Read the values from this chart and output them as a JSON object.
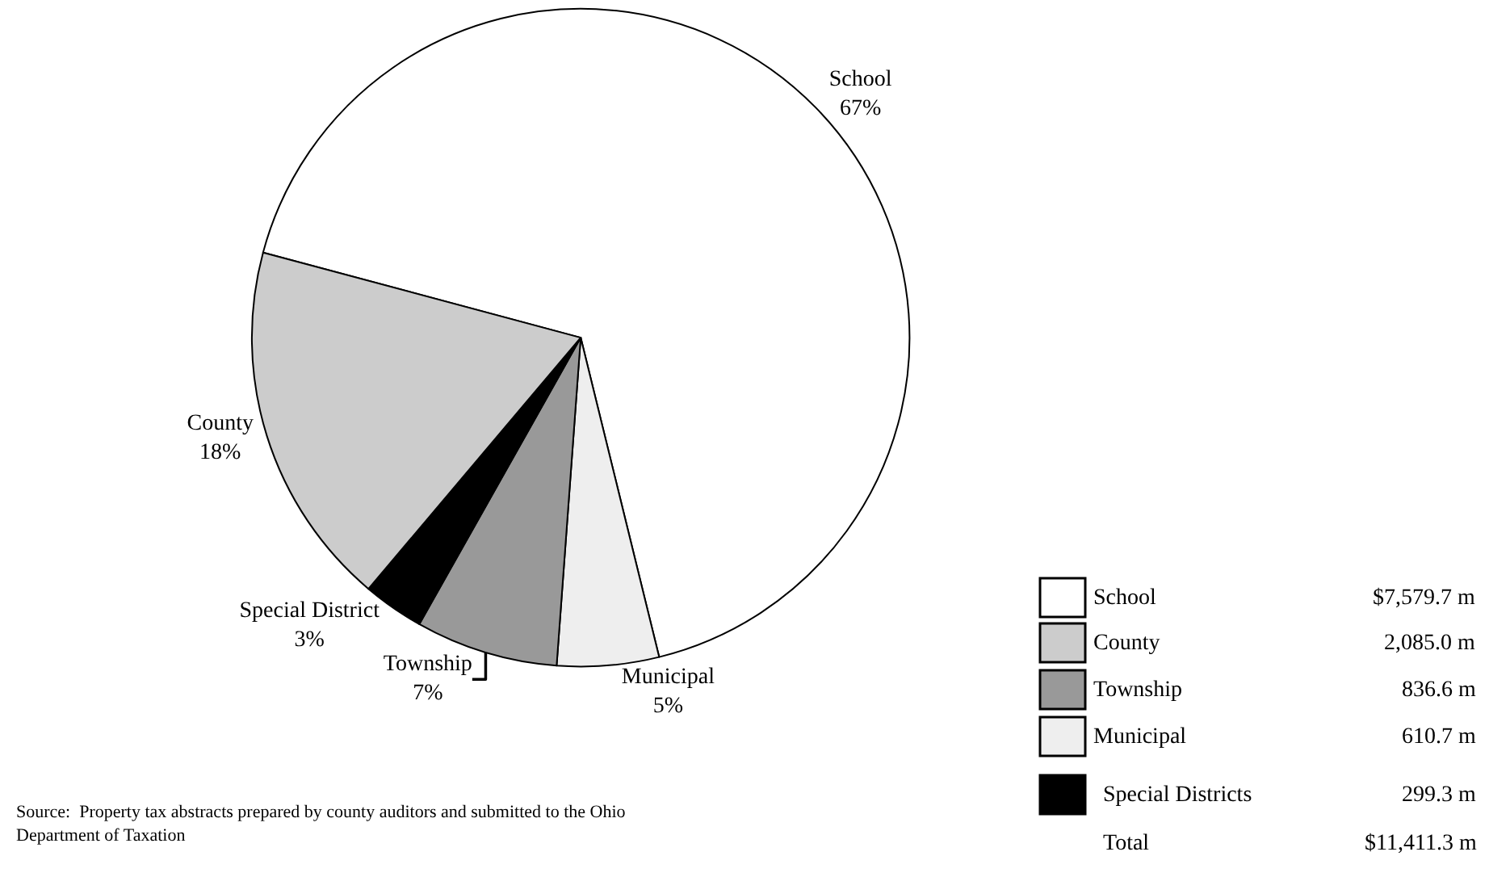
{
  "chart_data": [
    {
      "type": "pie",
      "categories": [
        "School",
        "Municipal",
        "Township",
        "Special District",
        "County"
      ],
      "values": [
        67,
        5,
        7,
        3,
        18
      ],
      "value_labels": [
        "67%",
        "5%",
        "7%",
        "3%",
        "18%"
      ],
      "colors": [
        "#ffffff",
        "#eeeeee",
        "#999999",
        "#000000",
        "#cccccc"
      ],
      "annotations": [
        "Source:  Property tax abstracts prepared by county auditors and submitted to the Ohio\nDepartment of Taxation"
      ]
    },
    {
      "type": "other",
      "annotations": [
        "School",
        "$7,579.7 m",
        "County",
        "2,085.0 m",
        "Township",
        "836.6 m",
        "Municipal",
        "610.7 m",
        "Special Districts",
        "299.3 m",
        "Total",
        "$11,411.3 m"
      ],
      "colors": [
        "#ffffff",
        "#cccccc",
        "#999999",
        "#eeeeee",
        "#000000"
      ]
    }
  ]
}
